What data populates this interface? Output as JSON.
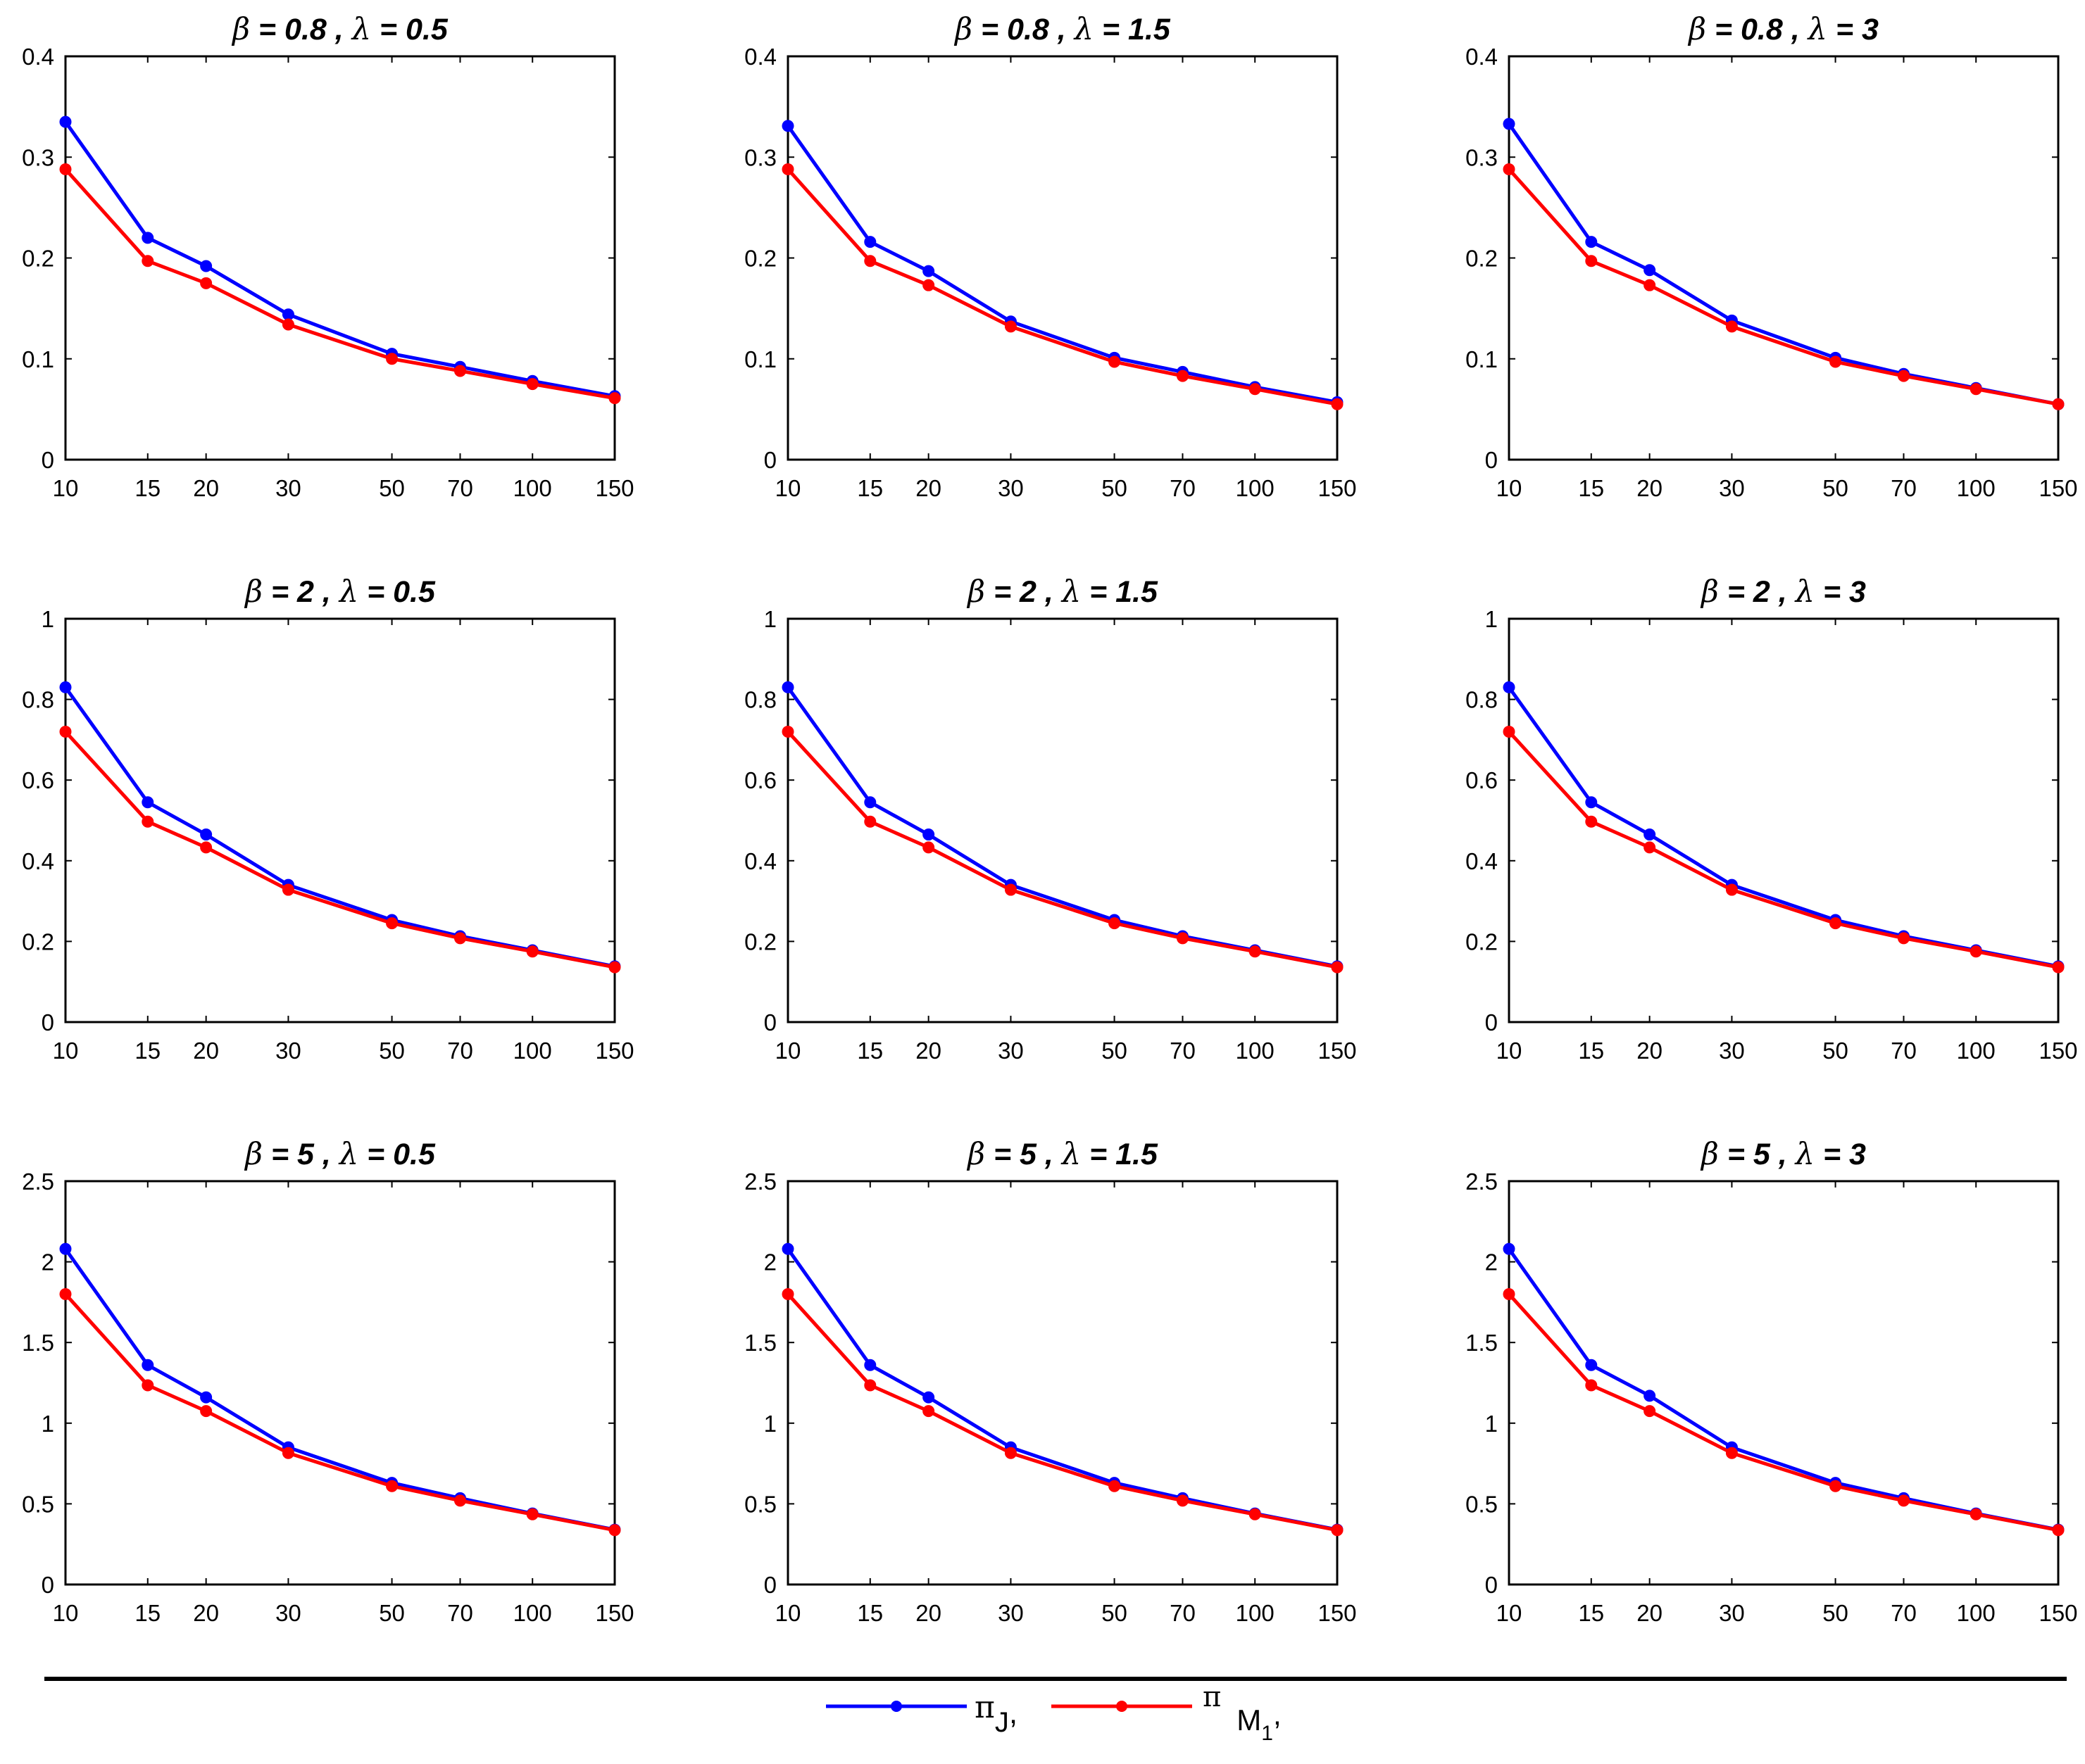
{
  "colors": {
    "series_pi_j": "#0000ff",
    "series_pi_m1": "#ff0000",
    "axis": "#000000",
    "background": "#ffffff"
  },
  "legend": {
    "entries": [
      {
        "symbol": "π",
        "subscript": "J",
        "trail": ",",
        "color": "#0000ff"
      },
      {
        "symbol": "π",
        "subscript": "M",
        "subsub": "1",
        "trail": ",",
        "color": "#ff0000"
      }
    ]
  },
  "chart_data": [
    {
      "type": "line",
      "title": "β = 0.8 , λ = 0.5",
      "title_parts": {
        "beta_symbol": "β",
        "beta_value": "= 0.8 ,",
        "lambda_symbol": "λ",
        "lambda_value": "= 0.5"
      },
      "x": [
        10,
        15,
        20,
        30,
        50,
        70,
        100,
        150
      ],
      "xticks": [
        "10",
        "15",
        "20",
        "30",
        "50",
        "70",
        "100",
        "150"
      ],
      "ylim": [
        0,
        0.4
      ],
      "yticks": [
        "0",
        "0.1",
        "0.2",
        "0.3",
        "0.4"
      ],
      "series": [
        {
          "name": "π_J",
          "values": [
            0.335,
            0.22,
            0.192,
            0.144,
            0.105,
            0.092,
            0.078,
            0.063
          ]
        },
        {
          "name": "π_M1",
          "values": [
            0.288,
            0.197,
            0.175,
            0.134,
            0.1,
            0.088,
            0.075,
            0.061
          ]
        }
      ]
    },
    {
      "type": "line",
      "title": "β = 0.8 , λ = 1.5",
      "title_parts": {
        "beta_symbol": "β",
        "beta_value": "= 0.8 ,",
        "lambda_symbol": "λ",
        "lambda_value": "= 1.5"
      },
      "x": [
        10,
        15,
        20,
        30,
        50,
        70,
        100,
        150
      ],
      "xticks": [
        "10",
        "15",
        "20",
        "30",
        "50",
        "70",
        "100",
        "150"
      ],
      "ylim": [
        0,
        0.4
      ],
      "yticks": [
        "0",
        "0.1",
        "0.2",
        "0.3",
        "0.4"
      ],
      "series": [
        {
          "name": "π_J",
          "values": [
            0.331,
            0.216,
            0.187,
            0.137,
            0.101,
            0.087,
            0.072,
            0.057
          ]
        },
        {
          "name": "π_M1",
          "values": [
            0.288,
            0.197,
            0.173,
            0.132,
            0.097,
            0.083,
            0.07,
            0.055
          ]
        }
      ]
    },
    {
      "type": "line",
      "title": "β = 0.8 , λ = 3",
      "title_parts": {
        "beta_symbol": "β",
        "beta_value": "= 0.8 ,",
        "lambda_symbol": "λ",
        "lambda_value": "= 3"
      },
      "x": [
        10,
        15,
        20,
        30,
        50,
        70,
        100,
        150
      ],
      "xticks": [
        "10",
        "15",
        "20",
        "30",
        "50",
        "70",
        "100",
        "150"
      ],
      "ylim": [
        0,
        0.4
      ],
      "yticks": [
        "0",
        "0.1",
        "0.2",
        "0.3",
        "0.4"
      ],
      "series": [
        {
          "name": "π_J",
          "values": [
            0.333,
            0.216,
            0.188,
            0.138,
            0.101,
            0.085,
            0.071,
            0.055
          ]
        },
        {
          "name": "π_M1",
          "values": [
            0.288,
            0.197,
            0.173,
            0.132,
            0.097,
            0.083,
            0.07,
            0.055
          ]
        }
      ]
    },
    {
      "type": "line",
      "title": "β = 2 , λ = 0.5",
      "title_parts": {
        "beta_symbol": "β",
        "beta_value": "= 2 ,",
        "lambda_symbol": "λ",
        "lambda_value": "= 0.5"
      },
      "x": [
        10,
        15,
        20,
        30,
        50,
        70,
        100,
        150
      ],
      "xticks": [
        "10",
        "15",
        "20",
        "30",
        "50",
        "70",
        "100",
        "150"
      ],
      "ylim": [
        0,
        1
      ],
      "yticks": [
        "0",
        "0.2",
        "0.4",
        "0.6",
        "0.8",
        "1"
      ],
      "series": [
        {
          "name": "π_J",
          "values": [
            0.83,
            0.545,
            0.465,
            0.34,
            0.253,
            0.213,
            0.178,
            0.138
          ]
        },
        {
          "name": "π_M1",
          "values": [
            0.72,
            0.497,
            0.433,
            0.328,
            0.245,
            0.208,
            0.175,
            0.136
          ]
        }
      ]
    },
    {
      "type": "line",
      "title": "β = 2 , λ = 1.5",
      "title_parts": {
        "beta_symbol": "β",
        "beta_value": "= 2 ,",
        "lambda_symbol": "λ",
        "lambda_value": "= 1.5"
      },
      "x": [
        10,
        15,
        20,
        30,
        50,
        70,
        100,
        150
      ],
      "xticks": [
        "10",
        "15",
        "20",
        "30",
        "50",
        "70",
        "100",
        "150"
      ],
      "ylim": [
        0,
        1
      ],
      "yticks": [
        "0",
        "0.2",
        "0.4",
        "0.6",
        "0.8",
        "1"
      ],
      "series": [
        {
          "name": "π_J",
          "values": [
            0.83,
            0.545,
            0.465,
            0.34,
            0.253,
            0.213,
            0.178,
            0.138
          ]
        },
        {
          "name": "π_M1",
          "values": [
            0.72,
            0.497,
            0.433,
            0.328,
            0.245,
            0.208,
            0.175,
            0.136
          ]
        }
      ]
    },
    {
      "type": "line",
      "title": "β = 2 , λ = 3",
      "title_parts": {
        "beta_symbol": "β",
        "beta_value": "= 2 ,",
        "lambda_symbol": "λ",
        "lambda_value": "= 3"
      },
      "x": [
        10,
        15,
        20,
        30,
        50,
        70,
        100,
        150
      ],
      "xticks": [
        "10",
        "15",
        "20",
        "30",
        "50",
        "70",
        "100",
        "150"
      ],
      "ylim": [
        0,
        1
      ],
      "yticks": [
        "0",
        "0.2",
        "0.4",
        "0.6",
        "0.8",
        "1"
      ],
      "series": [
        {
          "name": "π_J",
          "values": [
            0.83,
            0.545,
            0.465,
            0.34,
            0.253,
            0.213,
            0.178,
            0.138
          ]
        },
        {
          "name": "π_M1",
          "values": [
            0.72,
            0.497,
            0.433,
            0.328,
            0.245,
            0.208,
            0.175,
            0.136
          ]
        }
      ]
    },
    {
      "type": "line",
      "title": "β = 5 , λ = 0.5",
      "title_parts": {
        "beta_symbol": "β",
        "beta_value": "= 5 ,",
        "lambda_symbol": "λ",
        "lambda_value": "= 0.5"
      },
      "x": [
        10,
        15,
        20,
        30,
        50,
        70,
        100,
        150
      ],
      "xticks": [
        "10",
        "15",
        "20",
        "30",
        "50",
        "70",
        "100",
        "150"
      ],
      "ylim": [
        0,
        2.5
      ],
      "yticks": [
        "0",
        "0.5",
        "1",
        "1.5",
        "2",
        "2.5"
      ],
      "series": [
        {
          "name": "π_J",
          "values": [
            2.08,
            1.36,
            1.16,
            0.85,
            0.63,
            0.535,
            0.44,
            0.34
          ]
        },
        {
          "name": "π_M1",
          "values": [
            1.8,
            1.235,
            1.075,
            0.815,
            0.61,
            0.52,
            0.435,
            0.337
          ]
        }
      ]
    },
    {
      "type": "line",
      "title": "β = 5 , λ = 1.5",
      "title_parts": {
        "beta_symbol": "β",
        "beta_value": "= 5 ,",
        "lambda_symbol": "λ",
        "lambda_value": "= 1.5"
      },
      "x": [
        10,
        15,
        20,
        30,
        50,
        70,
        100,
        150
      ],
      "xticks": [
        "10",
        "15",
        "20",
        "30",
        "50",
        "70",
        "100",
        "150"
      ],
      "ylim": [
        0,
        2.5
      ],
      "yticks": [
        "0",
        "0.5",
        "1",
        "1.5",
        "2",
        "2.5"
      ],
      "series": [
        {
          "name": "π_J",
          "values": [
            2.08,
            1.36,
            1.16,
            0.85,
            0.63,
            0.535,
            0.44,
            0.34
          ]
        },
        {
          "name": "π_M1",
          "values": [
            1.8,
            1.235,
            1.075,
            0.815,
            0.61,
            0.52,
            0.435,
            0.337
          ]
        }
      ]
    },
    {
      "type": "line",
      "title": "β = 5 , λ = 3",
      "title_parts": {
        "beta_symbol": "β",
        "beta_value": "= 5 ,",
        "lambda_symbol": "λ",
        "lambda_value": "= 3"
      },
      "x": [
        10,
        15,
        20,
        30,
        50,
        70,
        100,
        150
      ],
      "xticks": [
        "10",
        "15",
        "20",
        "30",
        "50",
        "70",
        "100",
        "150"
      ],
      "ylim": [
        0,
        2.5
      ],
      "yticks": [
        "0",
        "0.5",
        "1",
        "1.5",
        "2",
        "2.5"
      ],
      "series": [
        {
          "name": "π_J",
          "values": [
            2.08,
            1.36,
            1.17,
            0.85,
            0.63,
            0.535,
            0.44,
            0.34
          ]
        },
        {
          "name": "π_M1",
          "values": [
            1.8,
            1.235,
            1.075,
            0.815,
            0.61,
            0.52,
            0.435,
            0.337
          ]
        }
      ]
    }
  ]
}
